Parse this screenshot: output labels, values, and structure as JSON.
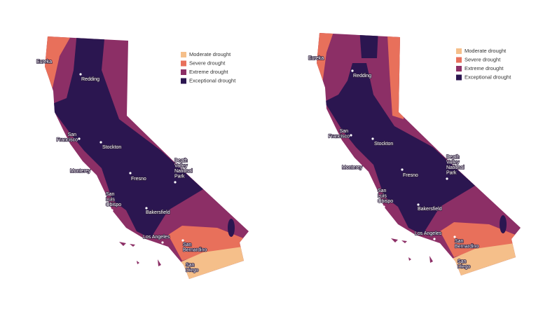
{
  "maps": [
    {
      "legend": [
        {
          "label": "Moderate drought",
          "color": "#f5bf8a"
        },
        {
          "label": "Severe drought",
          "color": "#e8705b"
        },
        {
          "label": "Extreme drought",
          "color": "#8c2f66"
        },
        {
          "label": "Exceptional drought",
          "color": "#2b1650"
        }
      ],
      "cities": [
        "Eureka",
        "Redding",
        "San Francisco",
        "Stockton",
        "Monterey",
        "Fresno",
        "Death Valley National Park",
        "San Luis Obispo",
        "Bakersfield",
        "Los Angeles",
        "San Bernardino",
        "San Diego"
      ]
    },
    {
      "legend": [
        {
          "label": "Moderate drought",
          "color": "#f5bf8a"
        },
        {
          "label": "Severe drought",
          "color": "#e8705b"
        },
        {
          "label": "Extreme drought",
          "color": "#8c2f66"
        },
        {
          "label": "Exceptional drought",
          "color": "#2b1650"
        }
      ],
      "cities": [
        "Eureka",
        "Redding",
        "San Francisco",
        "Stockton",
        "Monterey",
        "Fresno",
        "Death Valley National Park",
        "San Luis Obispo",
        "Bakersfield",
        "Los Angeles",
        "San Bernardino",
        "San Diego"
      ]
    }
  ]
}
